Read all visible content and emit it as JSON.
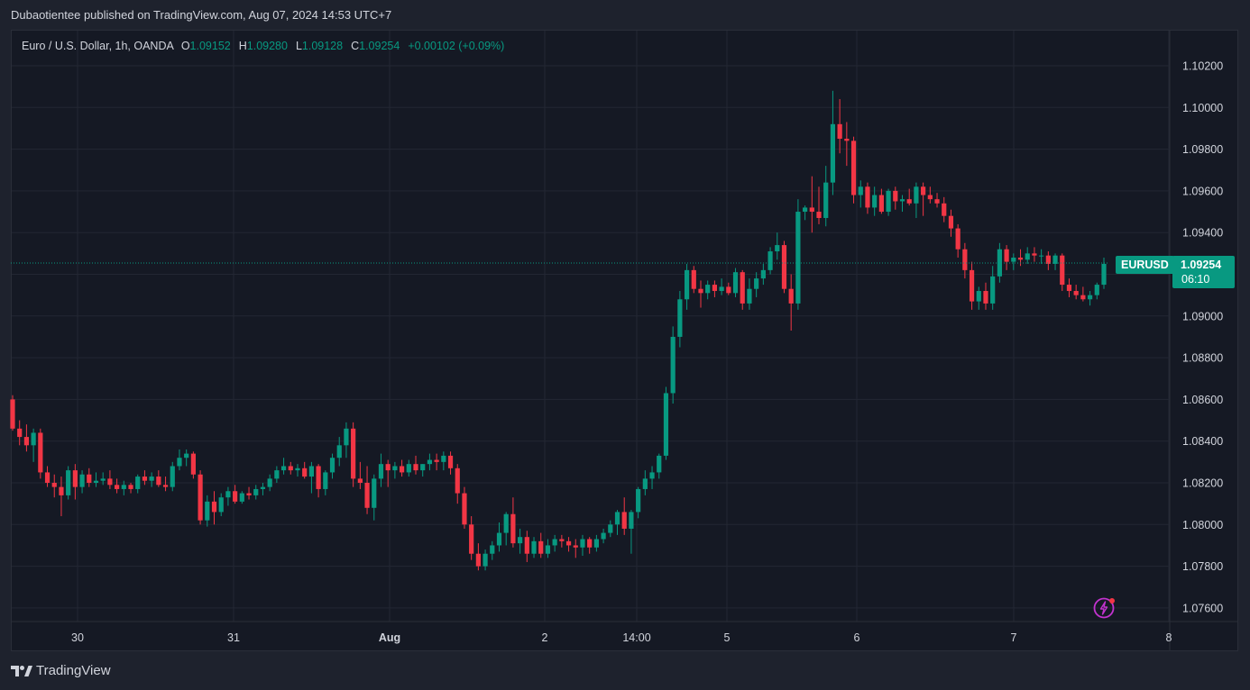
{
  "caption": "Dubaotientee published on TradingView.com, Aug 07, 2024 14:53 UTC+7",
  "legend": {
    "symbol": "Euro / U.S. Dollar, 1h, OANDA",
    "open_label": "O",
    "open": "1.09152",
    "high_label": "H",
    "high": "1.09280",
    "low_label": "L",
    "low": "1.09128",
    "close_label": "C",
    "close": "1.09254",
    "change": "+0.00102 (+0.09%)"
  },
  "price_tag": {
    "ticker": "EURUSD",
    "price": "1.09254",
    "countdown": "06:10"
  },
  "brand": "TradingView",
  "colors": {
    "up": "#089981",
    "down": "#f23645",
    "background": "#151924",
    "grid": "#232733",
    "text": "#d1d4dc"
  },
  "chart_data": {
    "type": "candlestick",
    "ylim": [
      1.0756,
      1.103
    ],
    "yticks": [
      "1.10200",
      "1.10000",
      "1.09800",
      "1.09600",
      "1.09400",
      "1.09200",
      "1.09000",
      "1.08800",
      "1.08600",
      "1.08400",
      "1.08200",
      "1.08000",
      "1.07800",
      "1.07600"
    ],
    "xticks": [
      "30",
      "31",
      "Aug",
      "2",
      "14:00",
      "5",
      "6",
      "7",
      "8"
    ],
    "last_price": 1.09254,
    "candles": [
      [
        1.086,
        1.0862,
        1.0845,
        1.0846
      ],
      [
        1.0846,
        1.085,
        1.0838,
        1.0842
      ],
      [
        1.0842,
        1.0848,
        1.0835,
        1.0838
      ],
      [
        1.0838,
        1.0846,
        1.083,
        1.0844
      ],
      [
        1.0844,
        1.0846,
        1.0822,
        1.0825
      ],
      [
        1.0825,
        1.0828,
        1.0818,
        1.082
      ],
      [
        1.082,
        1.0824,
        1.0813,
        1.0818
      ],
      [
        1.0818,
        1.0823,
        1.0804,
        1.0814
      ],
      [
        1.0814,
        1.0828,
        1.0812,
        1.0826
      ],
      [
        1.0826,
        1.0829,
        1.0812,
        1.0818
      ],
      [
        1.0818,
        1.0826,
        1.0815,
        1.0824
      ],
      [
        1.0824,
        1.0827,
        1.0818,
        1.082
      ],
      [
        1.082,
        1.0825,
        1.0818,
        1.0821
      ],
      [
        1.0821,
        1.0825,
        1.0819,
        1.0822
      ],
      [
        1.0822,
        1.0826,
        1.0817,
        1.0819
      ],
      [
        1.0819,
        1.0822,
        1.0815,
        1.0817
      ],
      [
        1.0817,
        1.0821,
        1.0814,
        1.0819
      ],
      [
        1.0819,
        1.082,
        1.0815,
        1.0817
      ],
      [
        1.0817,
        1.0824,
        1.0815,
        1.0823
      ],
      [
        1.0823,
        1.0826,
        1.0819,
        1.0821
      ],
      [
        1.0821,
        1.0825,
        1.0818,
        1.0823
      ],
      [
        1.0823,
        1.0826,
        1.0818,
        1.0819
      ],
      [
        1.0819,
        1.0823,
        1.0816,
        1.0818
      ],
      [
        1.0818,
        1.083,
        1.0816,
        1.0828
      ],
      [
        1.0828,
        1.0836,
        1.0826,
        1.0832
      ],
      [
        1.0832,
        1.0836,
        1.0828,
        1.0834
      ],
      [
        1.0834,
        1.0835,
        1.0822,
        1.0824
      ],
      [
        1.0824,
        1.0826,
        1.08,
        1.0802
      ],
      [
        1.0802,
        1.0814,
        1.0799,
        1.0811
      ],
      [
        1.0811,
        1.0816,
        1.08,
        1.0806
      ],
      [
        1.0806,
        1.0815,
        1.0804,
        1.0813
      ],
      [
        1.0813,
        1.0818,
        1.0809,
        1.0816
      ],
      [
        1.0816,
        1.0819,
        1.081,
        1.0811
      ],
      [
        1.0811,
        1.0816,
        1.081,
        1.0815
      ],
      [
        1.0815,
        1.0818,
        1.0812,
        1.0814
      ],
      [
        1.0814,
        1.0819,
        1.0812,
        1.0817
      ],
      [
        1.0817,
        1.082,
        1.0814,
        1.0818
      ],
      [
        1.0818,
        1.0824,
        1.0816,
        1.0822
      ],
      [
        1.0822,
        1.0828,
        1.082,
        1.0826
      ],
      [
        1.0826,
        1.0832,
        1.0824,
        1.0828
      ],
      [
        1.0828,
        1.083,
        1.0824,
        1.0826
      ],
      [
        1.0826,
        1.0829,
        1.0823,
        1.0827
      ],
      [
        1.0827,
        1.083,
        1.0822,
        1.0823
      ],
      [
        1.0823,
        1.083,
        1.0815,
        1.0828
      ],
      [
        1.0828,
        1.0829,
        1.0813,
        1.0817
      ],
      [
        1.0817,
        1.0826,
        1.0814,
        1.0825
      ],
      [
        1.0825,
        1.0834,
        1.0822,
        1.0832
      ],
      [
        1.0832,
        1.0842,
        1.0828,
        1.0838
      ],
      [
        1.0838,
        1.0849,
        1.0832,
        1.0846
      ],
      [
        1.0846,
        1.0849,
        1.0818,
        1.0822
      ],
      [
        1.0822,
        1.083,
        1.0817,
        1.082
      ],
      [
        1.082,
        1.0828,
        1.0805,
        1.0808
      ],
      [
        1.0808,
        1.0824,
        1.0802,
        1.0822
      ],
      [
        1.0822,
        1.0834,
        1.0818,
        1.0829
      ],
      [
        1.0829,
        1.0831,
        1.0818,
        1.0826
      ],
      [
        1.0826,
        1.083,
        1.0822,
        1.0828
      ],
      [
        1.0828,
        1.0831,
        1.0823,
        1.0825
      ],
      [
        1.0825,
        1.0831,
        1.0823,
        1.0829
      ],
      [
        1.0829,
        1.0833,
        1.0824,
        1.0826
      ],
      [
        1.0826,
        1.0829,
        1.0823,
        1.0829
      ],
      [
        1.0829,
        1.0834,
        1.0826,
        1.0831
      ],
      [
        1.0831,
        1.0834,
        1.0826,
        1.083
      ],
      [
        1.083,
        1.0835,
        1.0826,
        1.0833
      ],
      [
        1.0833,
        1.0835,
        1.0824,
        1.0827
      ],
      [
        1.0827,
        1.0829,
        1.081,
        1.0815
      ],
      [
        1.0815,
        1.0818,
        1.0798,
        1.08
      ],
      [
        1.08,
        1.0804,
        1.0783,
        1.0786
      ],
      [
        1.0786,
        1.0791,
        1.0778,
        1.078
      ],
      [
        1.078,
        1.0788,
        1.0778,
        1.0786
      ],
      [
        1.0786,
        1.0792,
        1.0783,
        1.079
      ],
      [
        1.079,
        1.0801,
        1.0787,
        1.0796
      ],
      [
        1.0796,
        1.0806,
        1.079,
        1.0805
      ],
      [
        1.0805,
        1.0813,
        1.0789,
        1.0791
      ],
      [
        1.0791,
        1.0798,
        1.0786,
        1.0794
      ],
      [
        1.0794,
        1.0797,
        1.0782,
        1.0786
      ],
      [
        1.0786,
        1.0794,
        1.0784,
        1.0792
      ],
      [
        1.0792,
        1.0796,
        1.0784,
        1.0786
      ],
      [
        1.0786,
        1.0793,
        1.0784,
        1.079
      ],
      [
        1.079,
        1.0795,
        1.0787,
        1.0793
      ],
      [
        1.0793,
        1.0795,
        1.0789,
        1.0792
      ],
      [
        1.0792,
        1.0794,
        1.0787,
        1.079
      ],
      [
        1.079,
        1.0793,
        1.0784,
        1.0789
      ],
      [
        1.0789,
        1.0795,
        1.0785,
        1.0793
      ],
      [
        1.0793,
        1.0794,
        1.0786,
        1.0789
      ],
      [
        1.0789,
        1.0795,
        1.0787,
        1.0793
      ],
      [
        1.0793,
        1.0798,
        1.0791,
        1.0796
      ],
      [
        1.0796,
        1.0802,
        1.0794,
        1.08
      ],
      [
        1.08,
        1.0807,
        1.0795,
        1.0806
      ],
      [
        1.0806,
        1.0813,
        1.0795,
        1.0798
      ],
      [
        1.0798,
        1.0807,
        1.0786,
        1.0806
      ],
      [
        1.0806,
        1.0818,
        1.0803,
        1.0817
      ],
      [
        1.0817,
        1.0826,
        1.0814,
        1.0822
      ],
      [
        1.0822,
        1.0828,
        1.0817,
        1.0825
      ],
      [
        1.0825,
        1.0834,
        1.0822,
        1.0833
      ],
      [
        1.0833,
        1.0866,
        1.0831,
        1.0863
      ],
      [
        1.0863,
        1.0895,
        1.0858,
        1.089
      ],
      [
        1.089,
        1.0912,
        1.0885,
        1.0908
      ],
      [
        1.0908,
        1.0925,
        1.0903,
        1.0922
      ],
      [
        1.0922,
        1.0924,
        1.0911,
        1.0913
      ],
      [
        1.0913,
        1.0917,
        1.0904,
        1.0911
      ],
      [
        1.0911,
        1.0917,
        1.0908,
        1.0915
      ],
      [
        1.0915,
        1.0917,
        1.0909,
        1.0912
      ],
      [
        1.0912,
        1.0918,
        1.091,
        1.0914
      ],
      [
        1.0914,
        1.0916,
        1.091,
        1.0911
      ],
      [
        1.0911,
        1.0923,
        1.0909,
        1.0921
      ],
      [
        1.0921,
        1.0922,
        1.0903,
        1.0906
      ],
      [
        1.0906,
        1.0918,
        1.0903,
        1.0913
      ],
      [
        1.0913,
        1.0921,
        1.0909,
        1.0918
      ],
      [
        1.0918,
        1.0925,
        1.0915,
        1.0922
      ],
      [
        1.0922,
        1.0933,
        1.092,
        1.0931
      ],
      [
        1.0931,
        1.094,
        1.0927,
        1.0934
      ],
      [
        1.0934,
        1.0936,
        1.0911,
        1.0913
      ],
      [
        1.0913,
        1.092,
        1.0893,
        1.0906
      ],
      [
        1.0906,
        1.0956,
        1.0903,
        1.095
      ],
      [
        1.095,
        1.0953,
        1.0946,
        1.0952
      ],
      [
        1.0952,
        1.0967,
        1.094,
        1.095
      ],
      [
        1.095,
        1.0962,
        1.0944,
        1.0947
      ],
      [
        1.0947,
        1.0972,
        1.0943,
        1.0964
      ],
      [
        1.0964,
        1.1008,
        1.0958,
        1.0992
      ],
      [
        1.0992,
        1.1004,
        1.0978,
        1.0985
      ],
      [
        1.0985,
        1.0993,
        1.0972,
        1.0984
      ],
      [
        1.0984,
        1.0986,
        1.0954,
        1.0958
      ],
      [
        1.0958,
        1.0965,
        1.0952,
        1.0962
      ],
      [
        1.0962,
        1.0964,
        1.0949,
        1.0952
      ],
      [
        1.0952,
        1.0962,
        1.0948,
        1.0958
      ],
      [
        1.0958,
        1.0961,
        1.0949,
        1.095
      ],
      [
        1.095,
        1.0961,
        1.0948,
        1.096
      ],
      [
        1.096,
        1.0962,
        1.0951,
        1.0955
      ],
      [
        1.0955,
        1.0958,
        1.095,
        1.0956
      ],
      [
        1.0956,
        1.0961,
        1.0953,
        1.0954
      ],
      [
        1.0954,
        1.0964,
        1.0947,
        1.0962
      ],
      [
        1.0962,
        1.0964,
        1.0948,
        1.0958
      ],
      [
        1.0958,
        1.0962,
        1.0954,
        1.0956
      ],
      [
        1.0956,
        1.0959,
        1.0952,
        1.0954
      ],
      [
        1.0954,
        1.0957,
        1.0945,
        1.0948
      ],
      [
        1.0948,
        1.0951,
        1.0938,
        1.0942
      ],
      [
        1.0942,
        1.0944,
        1.0928,
        1.0932
      ],
      [
        1.0932,
        1.0935,
        1.0918,
        1.0922
      ],
      [
        1.0922,
        1.0926,
        1.0903,
        1.0907
      ],
      [
        1.0907,
        1.0914,
        1.0903,
        1.0912
      ],
      [
        1.0912,
        1.0916,
        1.0903,
        1.0906
      ],
      [
        1.0906,
        1.0924,
        1.0903,
        1.0919
      ],
      [
        1.0919,
        1.0935,
        1.0916,
        1.0932
      ],
      [
        1.0932,
        1.0934,
        1.0922,
        1.0926
      ],
      [
        1.0926,
        1.093,
        1.0922,
        1.0928
      ],
      [
        1.0928,
        1.0932,
        1.0924,
        1.0927
      ],
      [
        1.0927,
        1.0933,
        1.0925,
        1.093
      ],
      [
        1.093,
        1.0933,
        1.0926,
        1.0929
      ],
      [
        1.0929,
        1.0932,
        1.0925,
        1.0929
      ],
      [
        1.0929,
        1.0931,
        1.0922,
        1.0925
      ],
      [
        1.0925,
        1.093,
        1.0922,
        1.0929
      ],
      [
        1.0929,
        1.093,
        1.0912,
        1.0915
      ],
      [
        1.0915,
        1.0918,
        1.0909,
        1.0912
      ],
      [
        1.0912,
        1.0915,
        1.0908,
        1.091
      ],
      [
        1.091,
        1.0914,
        1.0907,
        1.0908
      ],
      [
        1.0908,
        1.0912,
        1.0905,
        1.091
      ],
      [
        1.091,
        1.0916,
        1.0908,
        1.0915
      ],
      [
        1.0915,
        1.0928,
        1.0913,
        1.0925
      ]
    ]
  }
}
